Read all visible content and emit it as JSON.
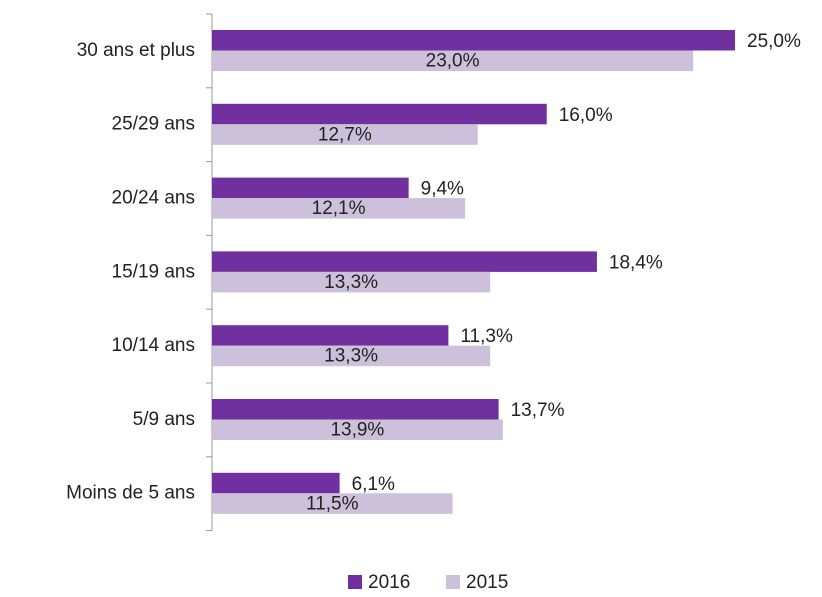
{
  "chart_data": {
    "type": "bar",
    "orientation": "horizontal",
    "categories": [
      "30 ans et plus",
      "25/29 ans",
      "20/24 ans",
      "15/19 ans",
      "10/14 ans",
      "5/9 ans",
      "Moins de 5 ans"
    ],
    "series": [
      {
        "name": "2016",
        "color": "#7030a0",
        "values": [
          25.0,
          16.0,
          9.4,
          18.4,
          11.3,
          13.7,
          6.1
        ],
        "value_labels": [
          "25,0%",
          "16,0%",
          "9,4%",
          "18,4%",
          "11,3%",
          "13,7%",
          "6,1%"
        ]
      },
      {
        "name": "2015",
        "color": "#ccc0da",
        "values": [
          23.0,
          12.7,
          12.1,
          13.3,
          13.3,
          13.9,
          11.5
        ],
        "value_labels": [
          "23,0%",
          "12,7%",
          "12,1%",
          "13,3%",
          "13,3%",
          "13,9%",
          "11,5%"
        ]
      }
    ],
    "legend": "bottom"
  }
}
